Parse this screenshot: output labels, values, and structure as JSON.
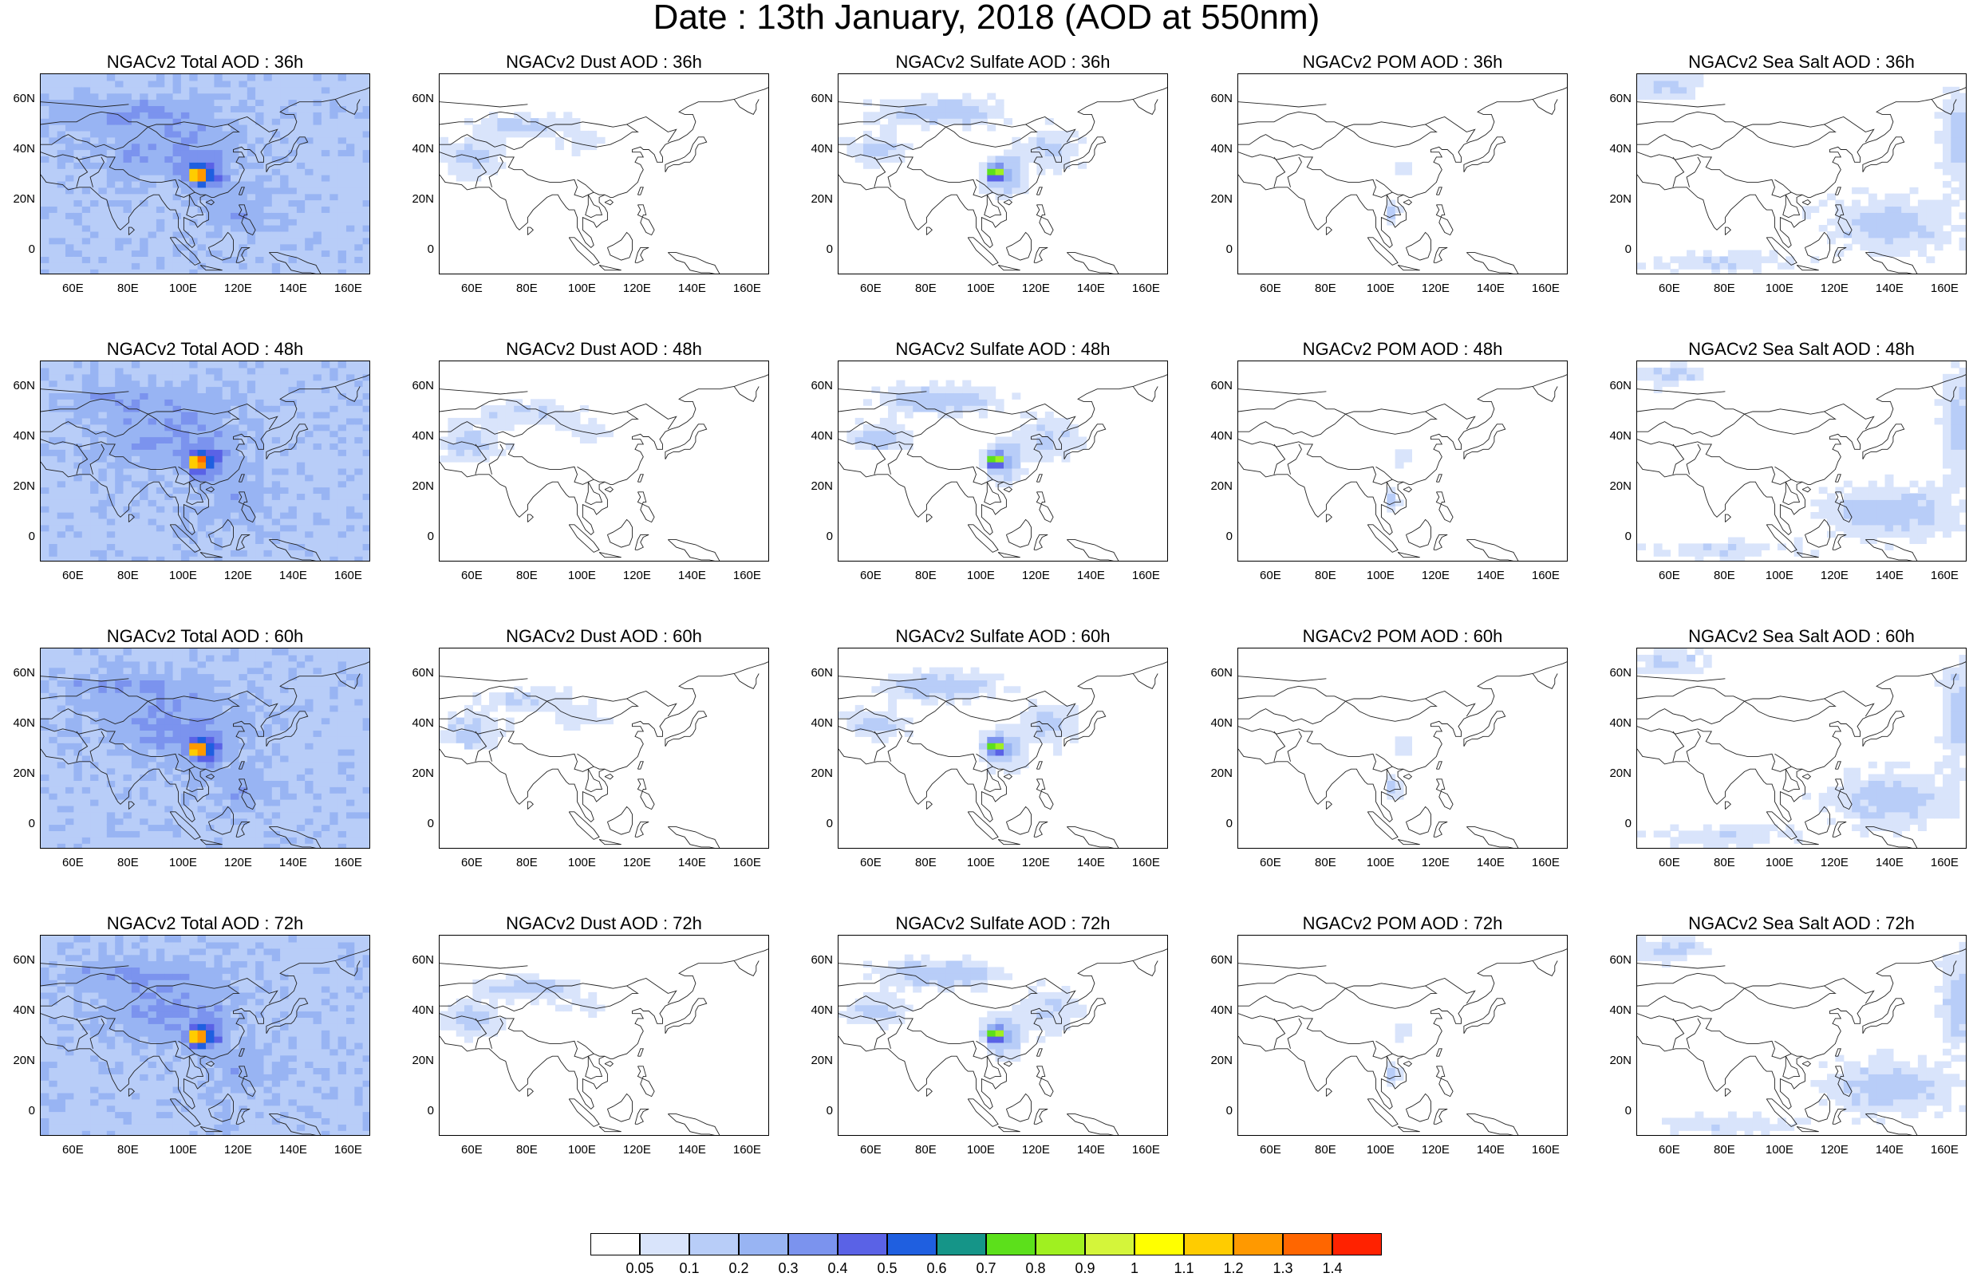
{
  "title": "Date : 13th January, 2018 (AOD at 550nm)",
  "panels": [
    {
      "title": "NGACv2 Total AOD : 36h",
      "kind": "total",
      "hour": "36h"
    },
    {
      "title": "NGACv2 Dust AOD : 36h",
      "kind": "dust",
      "hour": "36h"
    },
    {
      "title": "NGACv2 Sulfate AOD : 36h",
      "kind": "sulfate",
      "hour": "36h"
    },
    {
      "title": "NGACv2 POM AOD : 36h",
      "kind": "pom",
      "hour": "36h"
    },
    {
      "title": "NGACv2 Sea Salt AOD : 36h",
      "kind": "seasalt",
      "hour": "36h"
    },
    {
      "title": "NGACv2 Total AOD : 48h",
      "kind": "total",
      "hour": "48h"
    },
    {
      "title": "NGACv2 Dust AOD : 48h",
      "kind": "dust",
      "hour": "48h"
    },
    {
      "title": "NGACv2 Sulfate AOD : 48h",
      "kind": "sulfate",
      "hour": "48h"
    },
    {
      "title": "NGACv2 POM AOD : 48h",
      "kind": "pom",
      "hour": "48h"
    },
    {
      "title": "NGACv2 Sea Salt AOD : 48h",
      "kind": "seasalt",
      "hour": "48h"
    },
    {
      "title": "NGACv2 Total AOD : 60h",
      "kind": "total",
      "hour": "60h"
    },
    {
      "title": "NGACv2 Dust AOD : 60h",
      "kind": "dust",
      "hour": "60h"
    },
    {
      "title": "NGACv2 Sulfate AOD : 60h",
      "kind": "sulfate",
      "hour": "60h"
    },
    {
      "title": "NGACv2 POM AOD : 60h",
      "kind": "pom",
      "hour": "60h"
    },
    {
      "title": "NGACv2 Sea Salt AOD : 60h",
      "kind": "seasalt",
      "hour": "60h"
    },
    {
      "title": "NGACv2 Total AOD : 72h",
      "kind": "total",
      "hour": "72h"
    },
    {
      "title": "NGACv2 Dust AOD : 72h",
      "kind": "dust",
      "hour": "72h"
    },
    {
      "title": "NGACv2 Sulfate AOD : 72h",
      "kind": "sulfate",
      "hour": "72h"
    },
    {
      "title": "NGACv2 POM AOD : 72h",
      "kind": "pom",
      "hour": "72h"
    },
    {
      "title": "NGACv2 Sea Salt  AOD : 72h",
      "kind": "seasalt",
      "hour": "72h"
    }
  ],
  "lat_ticks": [
    "60N",
    "40N",
    "20N",
    "0"
  ],
  "lon_ticks": [
    "60E",
    "80E",
    "100E",
    "120E",
    "140E",
    "160E"
  ],
  "colorbar": {
    "labels": [
      "0.05",
      "0.1",
      "0.2",
      "0.3",
      "0.4",
      "0.5",
      "0.6",
      "0.7",
      "0.8",
      "0.9",
      "1",
      "1.1",
      "1.2",
      "1.3",
      "1.4"
    ],
    "colors": [
      "#ffffff",
      "#d9e4fb",
      "#b8cdf8",
      "#98b4f3",
      "#7b93ee",
      "#5a62e6",
      "#1f5fe0",
      "#159588",
      "#5ce01b",
      "#a0f020",
      "#d4f53a",
      "#ffff00",
      "#ffcc00",
      "#ff9900",
      "#ff6600",
      "#ff2200"
    ]
  }
}
